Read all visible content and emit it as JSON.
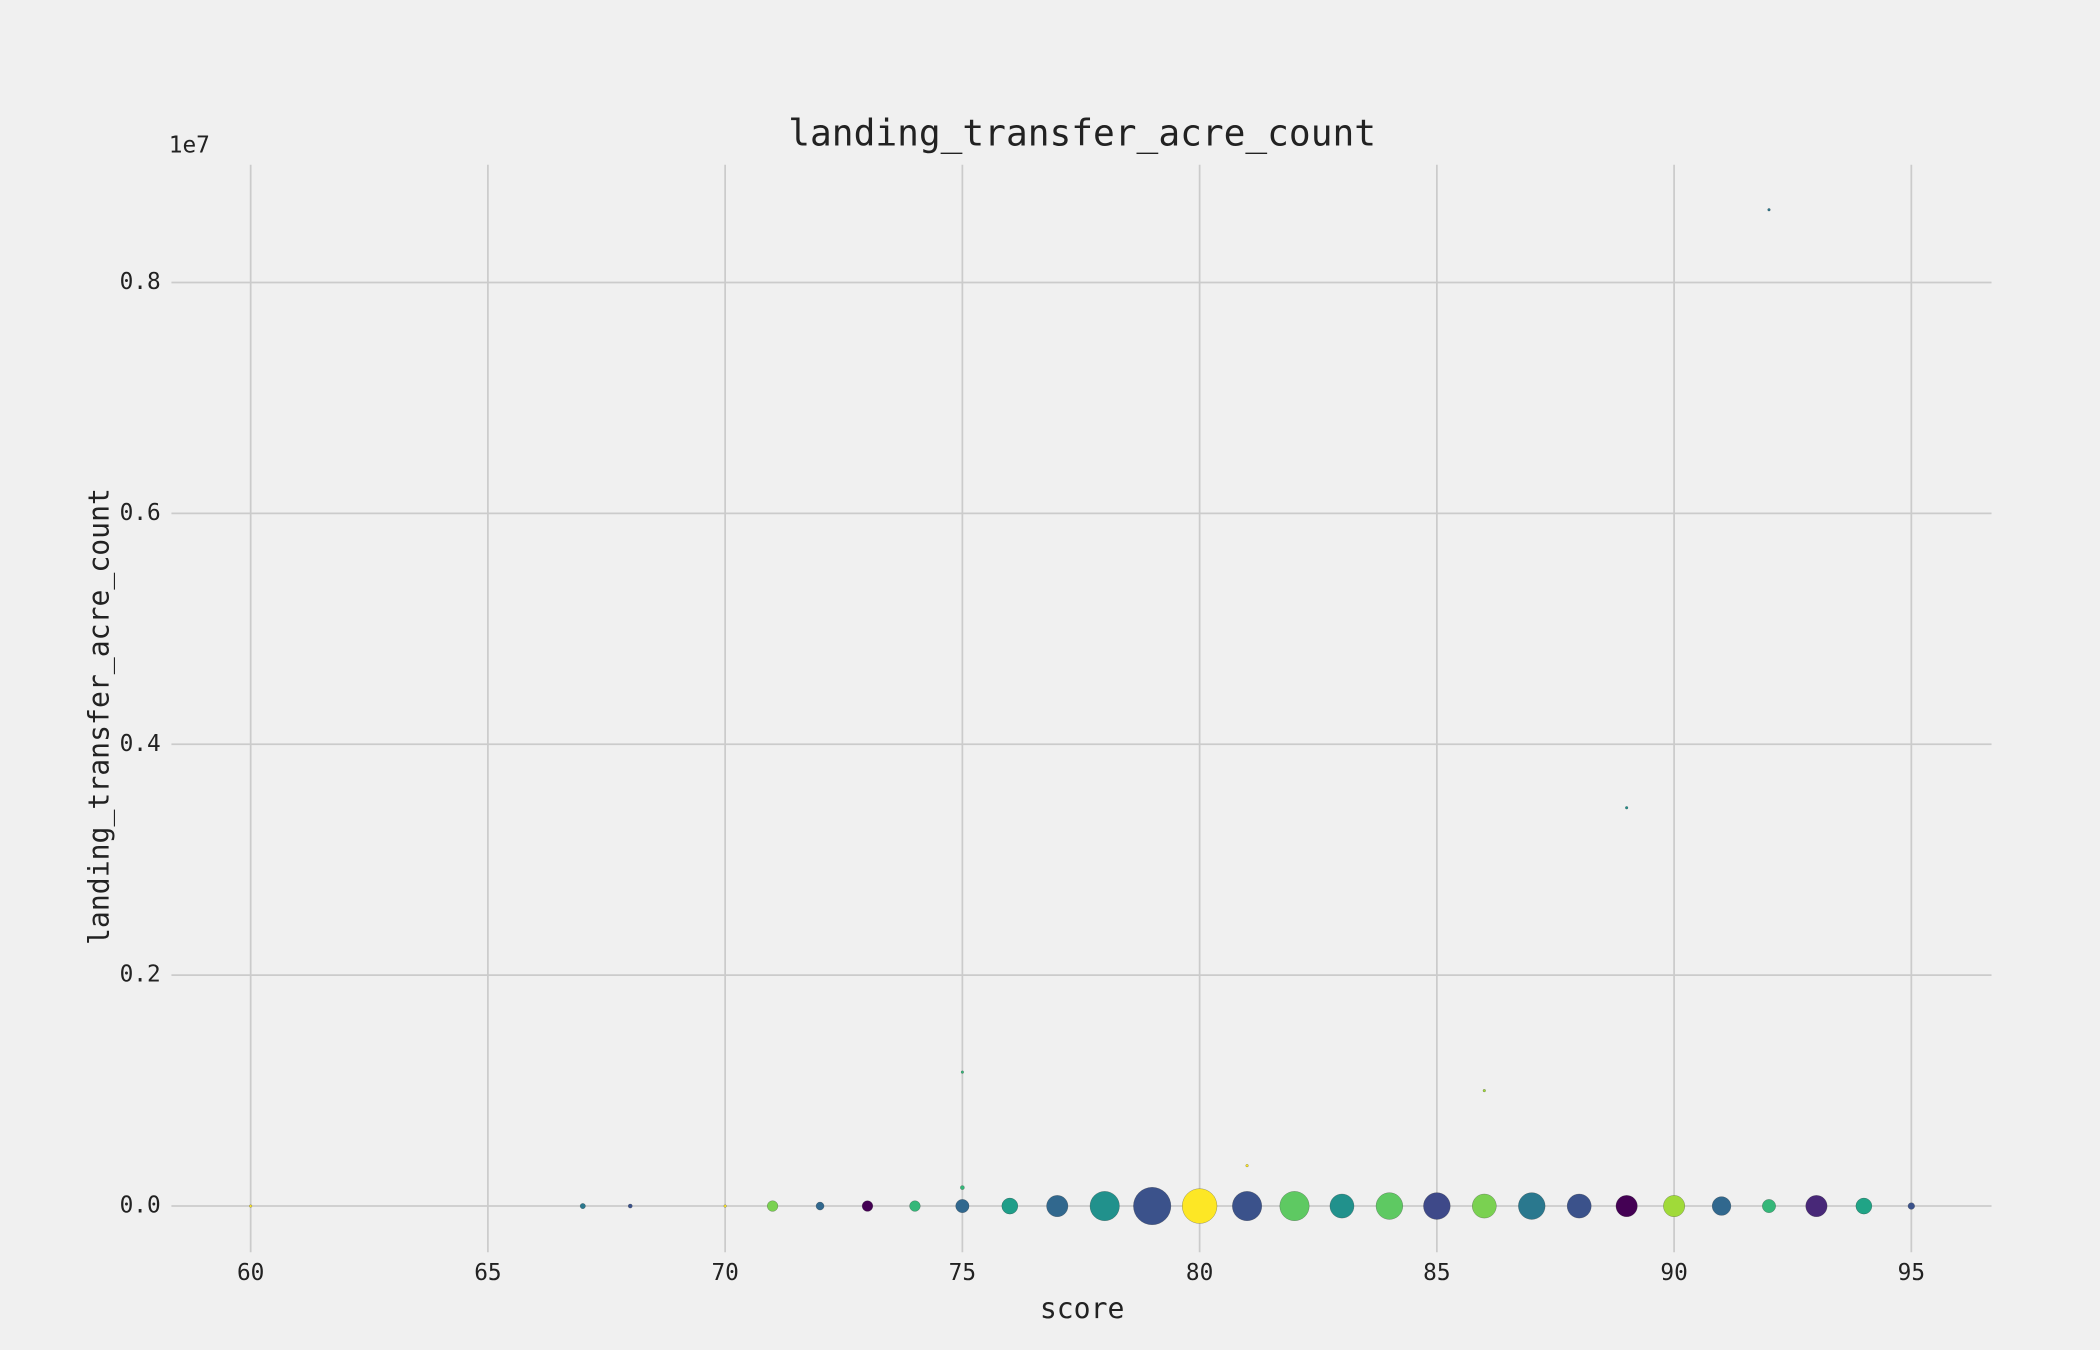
{
  "chart_data": {
    "type": "scatter",
    "title": "landing_transfer_acre_count",
    "x_label": "score",
    "y_label": "landing_transfer_acre_count",
    "y_offset_label": "1e7",
    "x": [
      60,
      67,
      68,
      70,
      71,
      72,
      73,
      74,
      75,
      75,
      75,
      76,
      77,
      78,
      79,
      80,
      81,
      81,
      82,
      83,
      84,
      85,
      86,
      86,
      87,
      88,
      89,
      89,
      90,
      91,
      92,
      92,
      93,
      94,
      95
    ],
    "y": [
      0,
      0,
      0,
      0,
      0,
      0,
      0,
      0,
      0,
      0.116,
      0.016,
      0,
      0,
      0,
      0,
      0,
      0,
      0.035,
      0,
      0,
      0,
      0,
      0,
      0.1,
      0,
      0,
      0,
      0.345,
      0,
      0,
      0,
      0.863,
      0,
      0,
      0
    ],
    "sizes": [
      1,
      2,
      1.5,
      1,
      4,
      3,
      4,
      4,
      5,
      1,
      1.5,
      6,
      8,
      11,
      14,
      13,
      11,
      1,
      11,
      9,
      10,
      10,
      9,
      1,
      10,
      9,
      8,
      1,
      8,
      7,
      5,
      1,
      8,
      6,
      2.5
    ],
    "colors": [
      "#fde725",
      "#2a788e",
      "#3b528b",
      "#fde725",
      "#7ad151",
      "#31688e",
      "#440154",
      "#35b779",
      "#31688e",
      "#35b779",
      "#35b779",
      "#1f9e89",
      "#31688e",
      "#21918c",
      "#3b528b",
      "#fde725",
      "#3b528b",
      "#fde725",
      "#5ec962",
      "#21918c",
      "#5ec962",
      "#3e4989",
      "#7ad151",
      "#a0da39",
      "#2a788e",
      "#3b528b",
      "#440154",
      "#21918c",
      "#a0da39",
      "#31688e",
      "#35b779",
      "#2a788e",
      "#482878",
      "#20a486",
      "#3b528b"
    ],
    "xlim": [
      58.33,
      96.69
    ],
    "xticks": [
      60,
      65,
      70,
      75,
      80,
      85,
      90,
      95
    ],
    "ylim": [
      -0.04,
      0.902
    ],
    "yticks": [
      {
        "value": 0,
        "label": "0.0"
      },
      0.2,
      0.4,
      0.6,
      0.8
    ],
    "grid": true
  }
}
